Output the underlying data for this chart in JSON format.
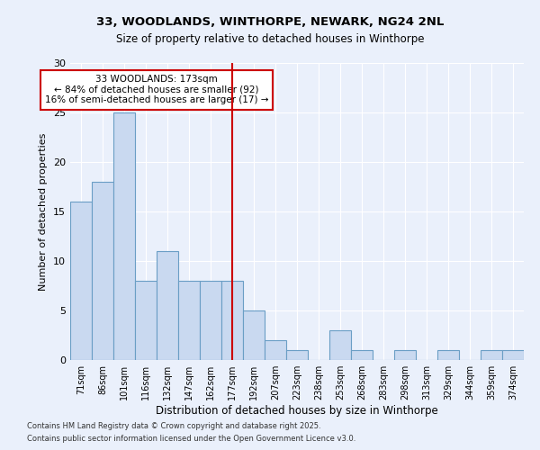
{
  "title1": "33, WOODLANDS, WINTHORPE, NEWARK, NG24 2NL",
  "title2": "Size of property relative to detached houses in Winthorpe",
  "xlabel": "Distribution of detached houses by size in Winthorpe",
  "ylabel": "Number of detached properties",
  "categories": [
    "71sqm",
    "86sqm",
    "101sqm",
    "116sqm",
    "132sqm",
    "147sqm",
    "162sqm",
    "177sqm",
    "192sqm",
    "207sqm",
    "223sqm",
    "238sqm",
    "253sqm",
    "268sqm",
    "283sqm",
    "298sqm",
    "313sqm",
    "329sqm",
    "344sqm",
    "359sqm",
    "374sqm"
  ],
  "values": [
    16,
    18,
    25,
    8,
    11,
    8,
    8,
    8,
    5,
    2,
    1,
    0,
    3,
    1,
    0,
    1,
    0,
    1,
    0,
    1,
    1
  ],
  "bar_color": "#c9d9f0",
  "bar_edge_color": "#6a9ec5",
  "vline_index": 7,
  "vline_color": "#cc0000",
  "annotation_text": "33 WOODLANDS: 173sqm\n← 84% of detached houses are smaller (92)\n16% of semi-detached houses are larger (17) →",
  "annotation_box_color": "#ffffff",
  "annotation_box_edge": "#cc0000",
  "ylim": [
    0,
    30
  ],
  "yticks": [
    0,
    5,
    10,
    15,
    20,
    25,
    30
  ],
  "footer1": "Contains HM Land Registry data © Crown copyright and database right 2025.",
  "footer2": "Contains public sector information licensed under the Open Government Licence v3.0.",
  "bg_color": "#eaf0fb",
  "plot_bg_color": "#eaf0fb"
}
